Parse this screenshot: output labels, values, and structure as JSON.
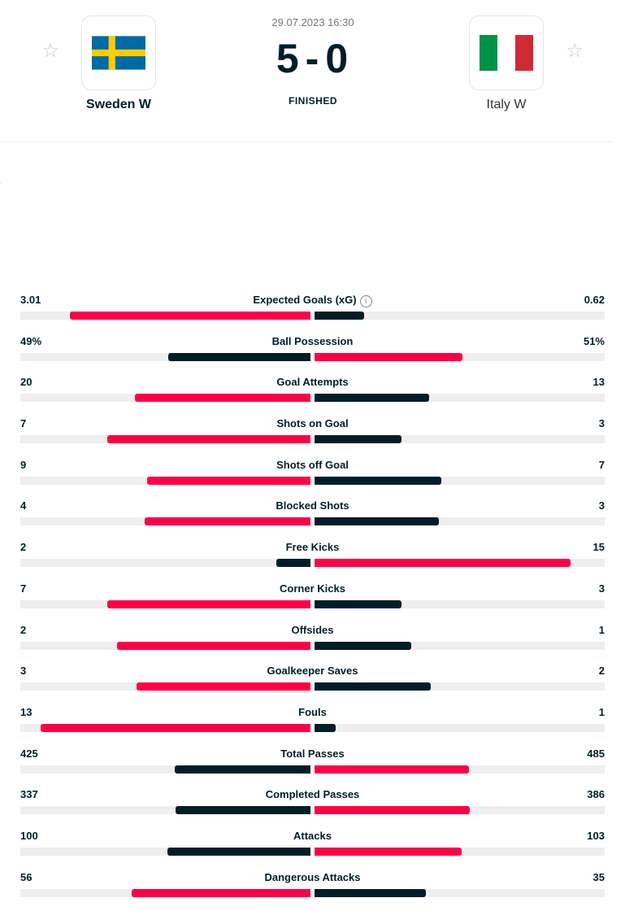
{
  "match": {
    "date": "29.07.2023 16:30",
    "score_home": "5",
    "score_sep": "-",
    "score_away": "0",
    "status": "FINISHED",
    "home": {
      "name": "Sweden W",
      "flag": "sweden-flag"
    },
    "away": {
      "name": "Italy W",
      "flag": "italy-flag"
    }
  },
  "colors": {
    "leader": "#ff0046",
    "trailer": "#001e28",
    "track": "#eeeeee"
  },
  "stats": [
    {
      "label": "Expected Goals (xG)",
      "home": "3.01",
      "away": "0.62",
      "h": 3.01,
      "a": 0.62,
      "info": true
    },
    {
      "label": "Ball Possession",
      "home": "49%",
      "away": "51%",
      "h": 49,
      "a": 51
    },
    {
      "label": "Goal Attempts",
      "home": "20",
      "away": "13",
      "h": 20,
      "a": 13
    },
    {
      "label": "Shots on Goal",
      "home": "7",
      "away": "3",
      "h": 7,
      "a": 3
    },
    {
      "label": "Shots off Goal",
      "home": "9",
      "away": "7",
      "h": 9,
      "a": 7
    },
    {
      "label": "Blocked Shots",
      "home": "4",
      "away": "3",
      "h": 4,
      "a": 3
    },
    {
      "label": "Free Kicks",
      "home": "2",
      "away": "15",
      "h": 2,
      "a": 15
    },
    {
      "label": "Corner Kicks",
      "home": "7",
      "away": "3",
      "h": 7,
      "a": 3
    },
    {
      "label": "Offsides",
      "home": "2",
      "away": "1",
      "h": 2,
      "a": 1
    },
    {
      "label": "Goalkeeper Saves",
      "home": "3",
      "away": "2",
      "h": 3,
      "a": 2
    },
    {
      "label": "Fouls",
      "home": "13",
      "away": "1",
      "h": 13,
      "a": 1
    },
    {
      "label": "Total Passes",
      "home": "425",
      "away": "485",
      "h": 425,
      "a": 485
    },
    {
      "label": "Completed Passes",
      "home": "337",
      "away": "386",
      "h": 337,
      "a": 386
    },
    {
      "label": "Attacks",
      "home": "100",
      "away": "103",
      "h": 100,
      "a": 103
    },
    {
      "label": "Dangerous Attacks",
      "home": "56",
      "away": "35",
      "h": 56,
      "a": 35
    }
  ]
}
